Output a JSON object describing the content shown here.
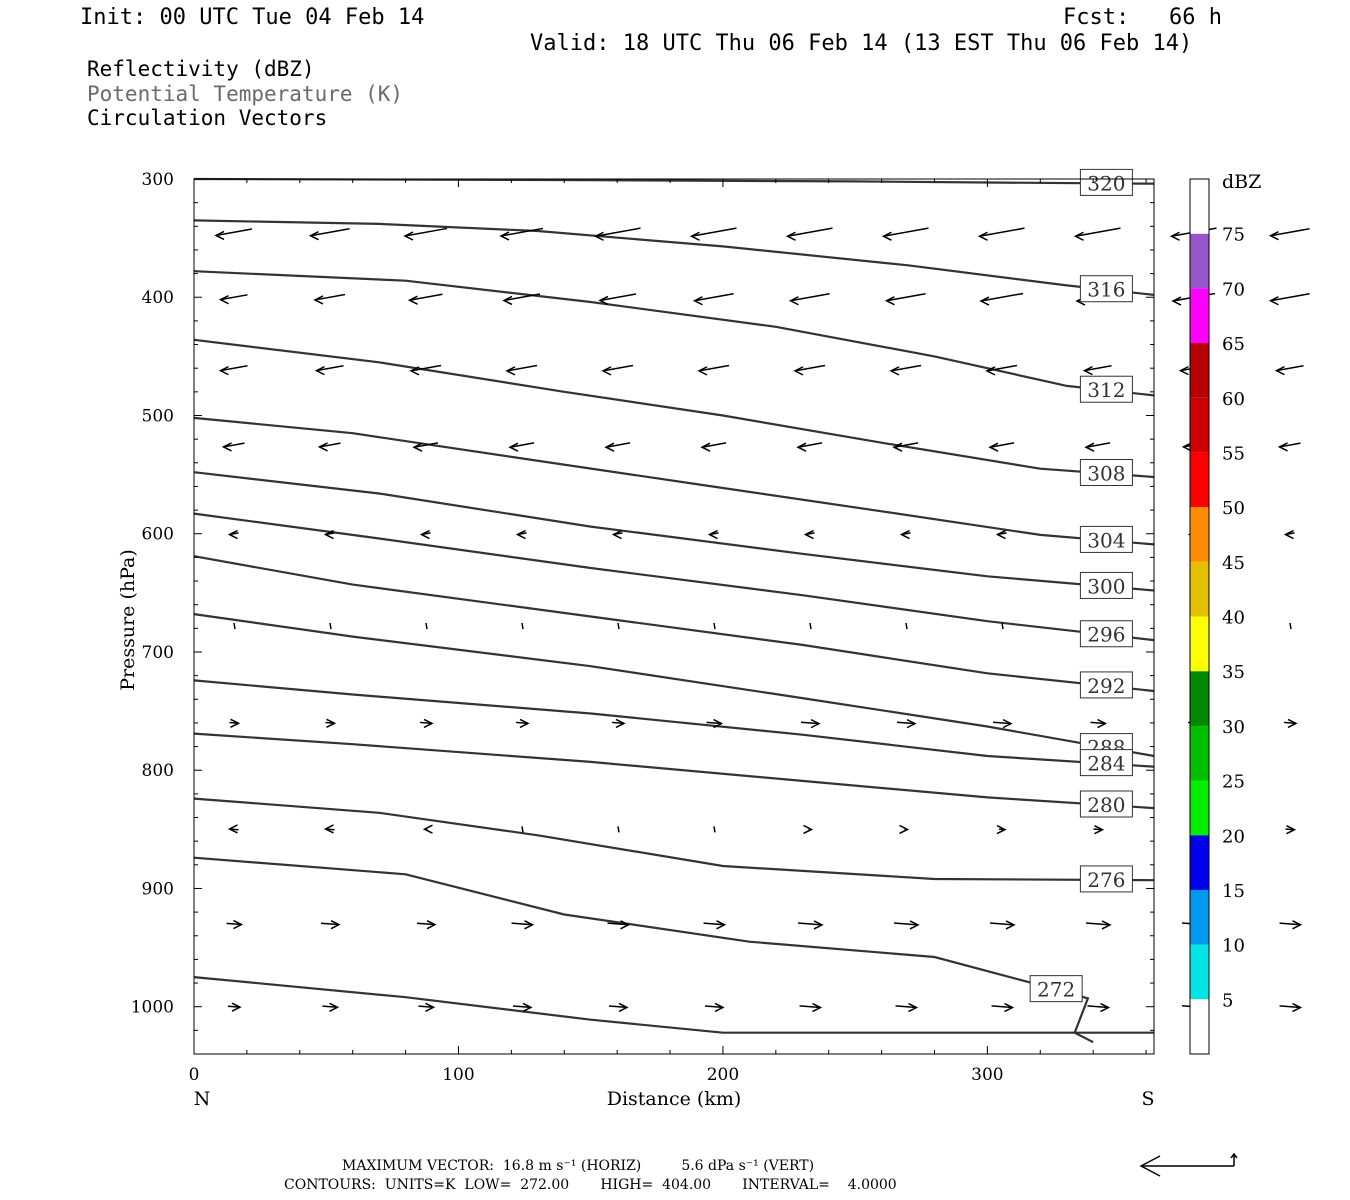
{
  "header": {
    "init": "Init: 00 UTC Tue 04 Feb 14",
    "fcst": "Fcst:   66 h",
    "valid": "Valid: 18 UTC Thu 06 Feb 14 (13 EST Thu 06 Feb 14)"
  },
  "legend": {
    "reflectivity": "Reflectivity (dBZ)",
    "theta": "Potential Temperature (K)",
    "vectors": "Circulation Vectors"
  },
  "footer": {
    "max_vector": "MAXIMUM VECTOR:  16.8 m s⁻¹ (HORIZ)         5.6 dPa s⁻¹ (VERT)",
    "contours": "CONTOURS:  UNITS=K  LOW=  272.00       HIGH=  404.00       INTERVAL=    4.0000"
  },
  "chart_data": {
    "type": "contour",
    "xlabel": "Distance (km)",
    "ylabel": "Pressure (hPa)",
    "xlim": [
      0,
      363
    ],
    "ylim": [
      300,
      1040
    ],
    "x_ticks": [
      "0",
      "100",
      "200",
      "300"
    ],
    "y_ticks": [
      "300",
      "400",
      "500",
      "600",
      "700",
      "800",
      "900",
      "1000"
    ],
    "end_labels": {
      "left": "N",
      "right": "S"
    },
    "colorbar": {
      "title": "dBZ",
      "levels": [
        "5",
        "10",
        "15",
        "20",
        "25",
        "30",
        "35",
        "40",
        "45",
        "50",
        "55",
        "60",
        "65",
        "70",
        "75"
      ],
      "colors": [
        "#00e4e4",
        "#0099ee",
        "#0000ee",
        "#00ee00",
        "#00c000",
        "#008800",
        "#ffff00",
        "#e6c000",
        "#ff8c00",
        "#ff0000",
        "#d00000",
        "#b80000",
        "#ff00ff",
        "#9955cc",
        "#ffffff"
      ]
    },
    "isentropes": [
      {
        "label": "320",
        "points": [
          [
            0,
            300
          ],
          [
            150,
            301
          ],
          [
            250,
            302
          ],
          [
            300,
            303
          ],
          [
            363,
            304
          ]
        ]
      },
      {
        "label": "316",
        "points": [
          [
            0,
            335
          ],
          [
            70,
            338
          ],
          [
            130,
            344
          ],
          [
            200,
            357
          ],
          [
            270,
            373
          ],
          [
            330,
            390
          ],
          [
            363,
            398
          ]
        ]
      },
      {
        "label": "312",
        "points": [
          [
            0,
            378
          ],
          [
            80,
            386
          ],
          [
            150,
            404
          ],
          [
            220,
            425
          ],
          [
            280,
            450
          ],
          [
            330,
            475
          ],
          [
            363,
            483
          ]
        ]
      },
      {
        "label": "308",
        "points": [
          [
            0,
            436
          ],
          [
            70,
            455
          ],
          [
            140,
            480
          ],
          [
            200,
            500
          ],
          [
            260,
            523
          ],
          [
            320,
            545
          ],
          [
            363,
            552
          ]
        ]
      },
      {
        "label": "304",
        "points": [
          [
            0,
            502
          ],
          [
            60,
            515
          ],
          [
            120,
            535
          ],
          [
            190,
            558
          ],
          [
            260,
            581
          ],
          [
            320,
            601
          ],
          [
            363,
            609
          ]
        ]
      },
      {
        "label": "300",
        "points": [
          [
            0,
            548
          ],
          [
            70,
            566
          ],
          [
            150,
            594
          ],
          [
            230,
            617
          ],
          [
            300,
            636
          ],
          [
            363,
            648
          ]
        ]
      },
      {
        "label": "296",
        "points": [
          [
            0,
            583
          ],
          [
            70,
            604
          ],
          [
            150,
            629
          ],
          [
            230,
            652
          ],
          [
            300,
            674
          ],
          [
            363,
            690
          ]
        ]
      },
      {
        "label": "292",
        "points": [
          [
            0,
            619
          ],
          [
            60,
            643
          ],
          [
            150,
            670
          ],
          [
            230,
            694
          ],
          [
            300,
            718
          ],
          [
            363,
            733
          ]
        ]
      },
      {
        "label": "288",
        "points": [
          [
            0,
            668
          ],
          [
            60,
            687
          ],
          [
            150,
            712
          ],
          [
            230,
            739
          ],
          [
            300,
            763
          ],
          [
            363,
            788
          ]
        ]
      },
      {
        "label": "284",
        "points": [
          [
            0,
            724
          ],
          [
            60,
            736
          ],
          [
            150,
            752
          ],
          [
            230,
            770
          ],
          [
            300,
            788
          ],
          [
            363,
            797
          ]
        ]
      },
      {
        "label": "280",
        "points": [
          [
            0,
            769
          ],
          [
            60,
            778
          ],
          [
            150,
            793
          ],
          [
            230,
            809
          ],
          [
            300,
            823
          ],
          [
            363,
            832
          ]
        ]
      },
      {
        "label": "276",
        "points": [
          [
            0,
            824
          ],
          [
            70,
            836
          ],
          [
            130,
            855
          ],
          [
            200,
            881
          ],
          [
            280,
            892
          ],
          [
            363,
            893
          ]
        ]
      },
      {
        "label": "272",
        "points": [
          [
            0,
            874
          ],
          [
            80,
            888
          ],
          [
            140,
            922
          ],
          [
            210,
            945
          ],
          [
            280,
            958
          ],
          [
            317,
            980
          ],
          [
            338,
            993
          ],
          [
            333,
            1022
          ],
          [
            340,
            1030
          ]
        ]
      },
      {
        "label": "",
        "points": [
          [
            0,
            975
          ],
          [
            80,
            992
          ],
          [
            150,
            1011
          ],
          [
            200,
            1022
          ],
          [
            363,
            1022
          ]
        ]
      }
    ],
    "vector_rows": [
      {
        "p": 345,
        "u": [
          -12,
          -13,
          -14,
          -14,
          -15,
          -15,
          -15,
          -15,
          -15,
          -15,
          -15,
          -13
        ]
      },
      {
        "p": 400,
        "u": [
          -9,
          -10,
          -11,
          -12,
          -12,
          -13,
          -13,
          -13,
          -14,
          -14,
          -14,
          -13
        ]
      },
      {
        "p": 460,
        "u": [
          -9,
          -9,
          -10,
          -10,
          -10,
          -10,
          -10,
          -10,
          -10,
          -9,
          -9,
          -9
        ]
      },
      {
        "p": 525,
        "u": [
          -7,
          -7,
          -8,
          -8,
          -8,
          -8,
          -8,
          -8,
          -8,
          -8,
          -7,
          -7
        ]
      },
      {
        "p": 600,
        "u": [
          -3,
          -3,
          -3,
          -3,
          -3,
          -3,
          -3,
          -3,
          -3,
          -3,
          -3,
          -3
        ]
      },
      {
        "p": 678,
        "u": [
          0,
          0,
          0,
          0,
          0,
          0,
          0,
          0,
          0,
          0,
          0,
          0
        ]
      },
      {
        "p": 760,
        "u": [
          3,
          3,
          4,
          4,
          4,
          5,
          6,
          6,
          6,
          5,
          4,
          4
        ]
      },
      {
        "p": 850,
        "u": [
          -3,
          -3,
          -1,
          0,
          0,
          0,
          1,
          1,
          2,
          3,
          3,
          3
        ]
      },
      {
        "p": 930,
        "u": [
          5,
          6,
          6,
          7,
          7,
          7,
          8,
          8,
          8,
          8,
          8,
          7
        ]
      },
      {
        "p": 1000,
        "u": [
          4,
          5,
          5,
          6,
          6,
          6,
          7,
          7,
          7,
          7,
          8,
          7
        ]
      }
    ]
  }
}
